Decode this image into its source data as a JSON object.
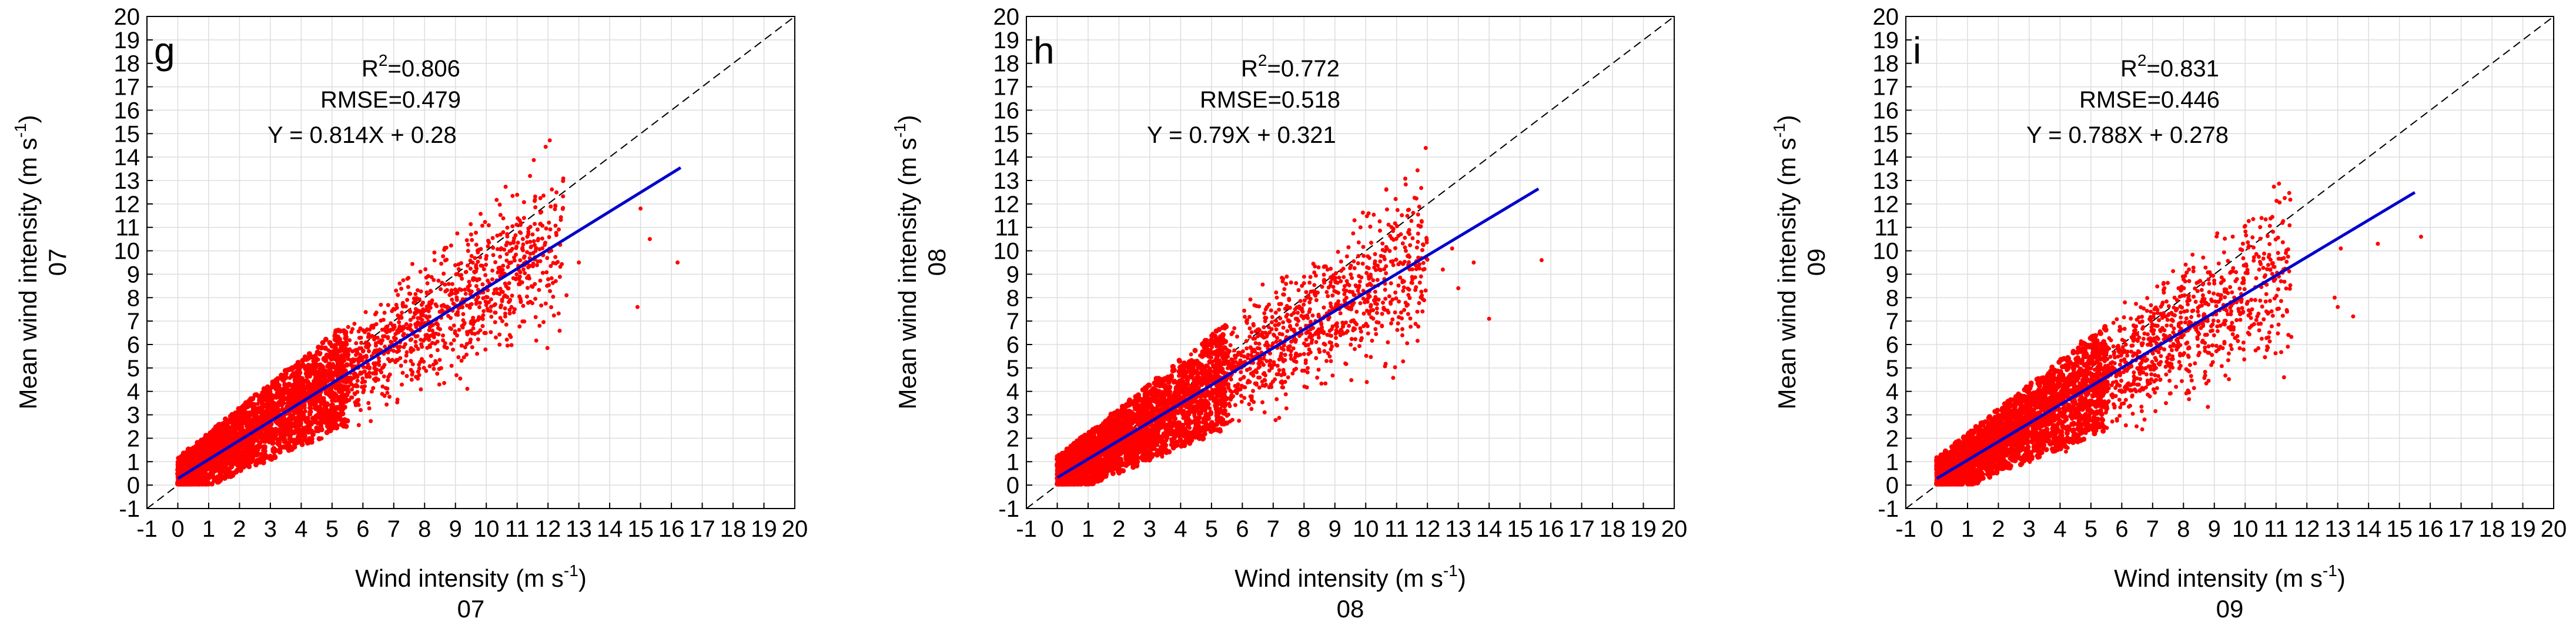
{
  "chart_data": [
    {
      "type": "scatter",
      "panel_label": "g",
      "xlabel": "Wind intensity (m s",
      "xlabel_sup": "-1",
      "xlabel_end": ")",
      "xlabel_sub": "07",
      "ylabel": "Mean wind intensity (m s",
      "ylabel_sup": "-1",
      "ylabel_end": ")",
      "ylabel_sub": "07",
      "xlim": [
        -1,
        20
      ],
      "ylim": [
        -1,
        20
      ],
      "xticks": [
        "-1",
        "0",
        "1",
        "2",
        "3",
        "4",
        "5",
        "6",
        "7",
        "8",
        "9",
        "10",
        "11",
        "12",
        "13",
        "14",
        "15",
        "16",
        "17",
        "18",
        "19",
        "20"
      ],
      "yticks": [
        "-1",
        "0",
        "1",
        "2",
        "3",
        "4",
        "5",
        "6",
        "7",
        "8",
        "9",
        "10",
        "11",
        "12",
        "13",
        "14",
        "15",
        "16",
        "17",
        "18",
        "19",
        "20"
      ],
      "grid": true,
      "r2_label": "R",
      "r2_sup": "2",
      "r2_value": "=0.806",
      "rmse_text": "RMSE=0.479",
      "equation_text": "Y = 0.814X + 0.28",
      "fit": {
        "slope": 0.814,
        "intercept": 0.28,
        "x_range": [
          0,
          16.3
        ]
      },
      "identity_line": {
        "x_range": [
          -1,
          20
        ]
      },
      "points": {
        "count": 2500,
        "x_max": 12.5,
        "seed": 7,
        "outliers": [
          [
            15.0,
            11.8
          ],
          [
            15.3,
            10.5
          ],
          [
            16.2,
            9.5
          ],
          [
            14.9,
            7.6
          ],
          [
            13.0,
            9.5
          ],
          [
            12.6,
            8.1
          ]
        ]
      },
      "colors": {
        "points": "#ff0000",
        "fit": "#0000cc",
        "identity": "#000000",
        "grid": "#dddddd"
      }
    },
    {
      "type": "scatter",
      "panel_label": "h",
      "xlabel": "Wind intensity (m s",
      "xlabel_sup": "-1",
      "xlabel_end": ")",
      "xlabel_sub": "08",
      "ylabel": "Mean wind intensity (m s",
      "ylabel_sup": "-1",
      "ylabel_end": ")",
      "ylabel_sub": "08",
      "xlim": [
        -1,
        20
      ],
      "ylim": [
        -1,
        20
      ],
      "xticks": [
        "-1",
        "0",
        "1",
        "2",
        "3",
        "4",
        "5",
        "6",
        "7",
        "8",
        "9",
        "10",
        "11",
        "12",
        "13",
        "14",
        "15",
        "16",
        "17",
        "18",
        "19",
        "20"
      ],
      "yticks": [
        "-1",
        "0",
        "1",
        "2",
        "3",
        "4",
        "5",
        "6",
        "7",
        "8",
        "9",
        "10",
        "11",
        "12",
        "13",
        "14",
        "15",
        "16",
        "17",
        "18",
        "19",
        "20"
      ],
      "grid": true,
      "r2_label": "R",
      "r2_sup": "2",
      "r2_value": "=0.772",
      "rmse_text": "RMSE=0.518",
      "equation_text": "Y = 0.79X + 0.321",
      "fit": {
        "slope": 0.79,
        "intercept": 0.321,
        "x_range": [
          0,
          15.6
        ]
      },
      "identity_line": {
        "x_range": [
          -1,
          20
        ]
      },
      "points": {
        "count": 2500,
        "x_max": 12.0,
        "seed": 8,
        "outliers": [
          [
            15.7,
            9.6
          ],
          [
            14.0,
            7.1
          ],
          [
            13.5,
            9.5
          ],
          [
            12.8,
            10.1
          ],
          [
            12.5,
            9.2
          ],
          [
            13.0,
            8.4
          ]
        ]
      },
      "colors": {
        "points": "#ff0000",
        "fit": "#0000cc",
        "identity": "#000000",
        "grid": "#dddddd"
      }
    },
    {
      "type": "scatter",
      "panel_label": "i",
      "xlabel": "Wind intensity (m s",
      "xlabel_sup": "-1",
      "xlabel_end": ")",
      "xlabel_sub": "09",
      "ylabel": "Mean wind intensity (m s",
      "ylabel_sup": "-1",
      "ylabel_end": ")",
      "ylabel_sub": "09",
      "xlim": [
        -1,
        20
      ],
      "ylim": [
        -1,
        20
      ],
      "xticks": [
        "-1",
        "0",
        "1",
        "2",
        "3",
        "4",
        "5",
        "6",
        "7",
        "8",
        "9",
        "10",
        "11",
        "12",
        "13",
        "14",
        "15",
        "16",
        "17",
        "18",
        "19",
        "20"
      ],
      "yticks": [
        "-1",
        "0",
        "1",
        "2",
        "3",
        "4",
        "5",
        "6",
        "7",
        "8",
        "9",
        "10",
        "11",
        "12",
        "13",
        "14",
        "15",
        "16",
        "17",
        "18",
        "19",
        "20"
      ],
      "grid": true,
      "r2_label": "R",
      "r2_sup": "2",
      "r2_value": "=0.831",
      "rmse_text": "RMSE=0.446",
      "equation_text": "Y = 0.788X + 0.278",
      "fit": {
        "slope": 0.788,
        "intercept": 0.278,
        "x_range": [
          0,
          15.5
        ]
      },
      "identity_line": {
        "x_range": [
          -1,
          20
        ]
      },
      "points": {
        "count": 2500,
        "x_max": 11.5,
        "seed": 9,
        "outliers": [
          [
            15.7,
            10.6
          ],
          [
            14.3,
            10.3
          ],
          [
            13.0,
            7.6
          ],
          [
            13.5,
            7.2
          ],
          [
            12.9,
            8.0
          ],
          [
            13.1,
            10.1
          ]
        ]
      },
      "colors": {
        "points": "#ff0000",
        "fit": "#0000cc",
        "identity": "#000000",
        "grid": "#dddddd"
      }
    }
  ]
}
